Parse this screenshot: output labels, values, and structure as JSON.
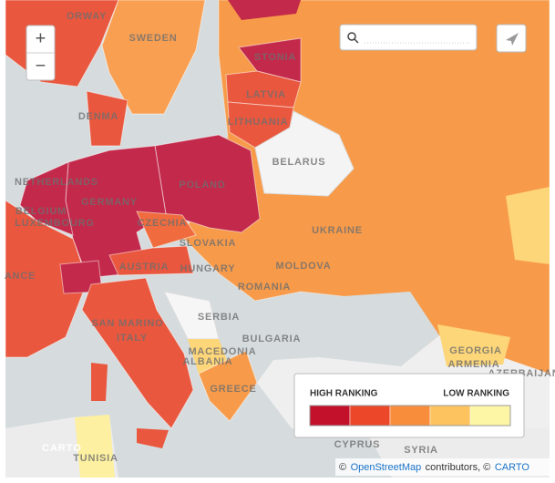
{
  "controls": {
    "zoom_in": "+",
    "zoom_out": "−"
  },
  "labels": [
    "ORWAY",
    "SWEDEN",
    "STONIA",
    "LATVIA",
    "LITHUANIA",
    "DENMA",
    "BELARUS",
    "NETHERLANDS",
    "GERMANY",
    "POLAND",
    "BELGIUM",
    "LUXEMBOURG",
    "CZECHIA",
    "UKRAINE",
    "SLOVAKIA",
    "HUNGARY",
    "MOLDOVA",
    "ANCE",
    "AUSTRIA",
    "ROMANIA",
    "SERBIA",
    "SAN MARINO",
    "ITALY",
    "BULGARIA",
    "MACEDONIA",
    "ALBANIA",
    "GREECE",
    "GEORGIA",
    "ARMENIA",
    "AZERBAIJAN",
    "CYPRUS",
    "SYRIA",
    "TUNISIA"
  ],
  "legend": {
    "high_label": "HIGH RANKING",
    "low_label": "LOW RANKING",
    "colors": [
      "#c3112b",
      "#ec4729",
      "#f88d3c",
      "#fdc35e",
      "#fdf6a4"
    ]
  },
  "watermark": "CARTO",
  "attribution": {
    "prefix": "©",
    "osm": "OpenStreetMap",
    "middle": "contributors, ©",
    "carto": "CARTO"
  }
}
